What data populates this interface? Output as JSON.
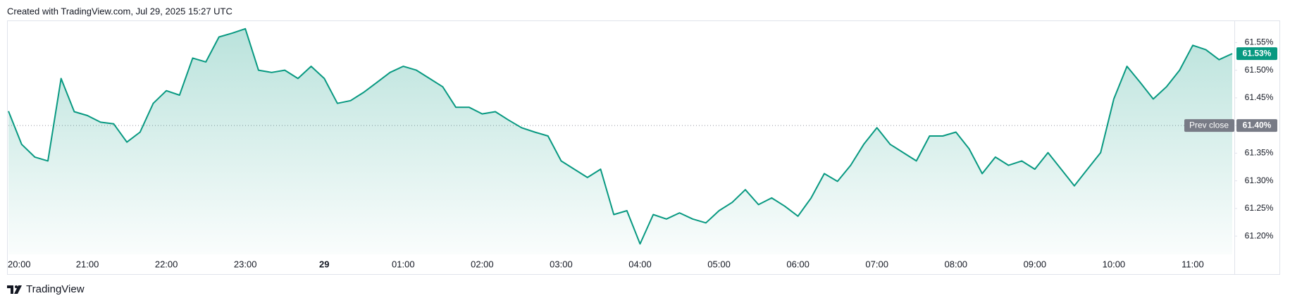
{
  "header": {
    "text": "Created with TradingView.com, Jul 29, 2025 15:27 UTC"
  },
  "footer": {
    "brand": "TradingView"
  },
  "chart_data": {
    "type": "area",
    "color": "#089981",
    "xlim": [
      "20:00",
      "11:30"
    ],
    "xticks": [
      "20:00",
      "21:00",
      "22:00",
      "23:00",
      {
        "value": "00:00",
        "label": "29"
      },
      "01:00",
      "02:00",
      "03:00",
      "04:00",
      "05:00",
      "06:00",
      "07:00",
      "08:00",
      "09:00",
      "10:00",
      "11:00"
    ],
    "ylim": [
      61.167,
      61.59
    ],
    "yticks": [
      {
        "value": 61.55,
        "label": "61.55%"
      },
      {
        "value": 61.5,
        "label": "61.50%"
      },
      {
        "value": 61.45,
        "label": "61.45%"
      },
      {
        "value": 61.4,
        "label": "61.40%"
      },
      {
        "value": 61.35,
        "label": "61.35%"
      },
      {
        "value": 61.3,
        "label": "61.30%"
      },
      {
        "value": 61.25,
        "label": "61.25%"
      },
      {
        "value": 61.2,
        "label": "61.20%"
      }
    ],
    "prev_close": {
      "name": "Prev close",
      "value": 61.4,
      "label": "61.40%"
    },
    "series": [
      {
        "color": "#089981",
        "x": [
          "20:00",
          "20:10",
          "20:20",
          "20:30",
          "20:40",
          "20:50",
          "21:00",
          "21:10",
          "21:20",
          "21:30",
          "21:40",
          "21:50",
          "22:00",
          "22:10",
          "22:20",
          "22:30",
          "22:40",
          "22:50",
          "23:00",
          "23:10",
          "23:20",
          "23:30",
          "23:40",
          "23:50",
          "00:00",
          "00:10",
          "00:20",
          "00:30",
          "00:40",
          "00:50",
          "01:00",
          "01:10",
          "01:20",
          "01:30",
          "01:40",
          "01:50",
          "02:00",
          "02:10",
          "02:20",
          "02:30",
          "02:40",
          "02:50",
          "03:00",
          "03:10",
          "03:20",
          "03:30",
          "03:40",
          "03:50",
          "04:00",
          "04:10",
          "04:20",
          "04:30",
          "04:40",
          "04:50",
          "05:00",
          "05:10",
          "05:20",
          "05:30",
          "05:40",
          "05:50",
          "06:00",
          "06:10",
          "06:20",
          "06:30",
          "06:40",
          "06:50",
          "07:00",
          "07:10",
          "07:20",
          "07:30",
          "07:40",
          "07:50",
          "08:00",
          "08:10",
          "08:20",
          "08:30",
          "08:40",
          "08:50",
          "09:00",
          "09:10",
          "09:20",
          "09:30",
          "09:40",
          "09:50",
          "10:00",
          "10:10",
          "10:20",
          "10:30",
          "10:40",
          "10:50",
          "11:00",
          "11:10",
          "11:20",
          "11:30"
        ],
        "values": [
          61.426,
          61.366,
          61.343,
          61.336,
          61.485,
          61.425,
          61.418,
          61.406,
          61.403,
          61.37,
          61.388,
          61.44,
          61.463,
          61.455,
          61.522,
          61.515,
          61.56,
          61.567,
          61.575,
          61.5,
          61.496,
          61.5,
          61.485,
          61.507,
          61.485,
          61.44,
          61.445,
          61.46,
          61.478,
          61.496,
          61.507,
          61.5,
          61.485,
          61.47,
          61.433,
          61.433,
          61.421,
          61.425,
          61.41,
          61.396,
          61.388,
          61.381,
          61.336,
          61.321,
          61.306,
          61.321,
          61.239,
          61.246,
          61.186,
          61.239,
          61.231,
          61.242,
          61.231,
          61.224,
          61.246,
          61.261,
          61.284,
          61.257,
          61.269,
          61.254,
          61.236,
          61.269,
          61.313,
          61.299,
          61.328,
          61.366,
          61.396,
          61.366,
          61.351,
          61.336,
          61.381,
          61.381,
          61.388,
          61.358,
          61.313,
          61.343,
          61.328,
          61.336,
          61.321,
          61.351,
          61.321,
          61.291,
          61.321,
          61.351,
          61.448,
          61.507,
          61.478,
          61.448,
          61.47,
          61.5,
          61.545,
          61.537,
          61.519,
          61.53
        ],
        "value_labels": [
          null,
          null,
          null,
          null,
          null,
          null,
          null,
          null,
          null,
          null,
          null,
          null,
          null,
          null,
          null,
          null,
          null,
          null,
          null,
          null,
          null,
          null,
          null,
          null,
          null,
          null,
          null,
          null,
          null,
          null,
          null,
          null,
          null,
          null,
          null,
          null,
          null,
          null,
          null,
          null,
          null,
          null,
          null,
          null,
          null,
          null,
          null,
          null,
          null,
          null,
          null,
          null,
          null,
          null,
          null,
          null,
          null,
          null,
          null,
          null,
          null,
          null,
          null,
          null,
          null,
          null,
          null,
          null,
          null,
          null,
          null,
          null,
          null,
          null,
          null,
          null,
          null,
          null,
          null,
          null,
          null,
          null,
          null,
          null,
          null,
          null,
          null,
          null,
          null,
          null,
          null,
          null,
          null,
          "61.53%"
        ]
      }
    ]
  }
}
